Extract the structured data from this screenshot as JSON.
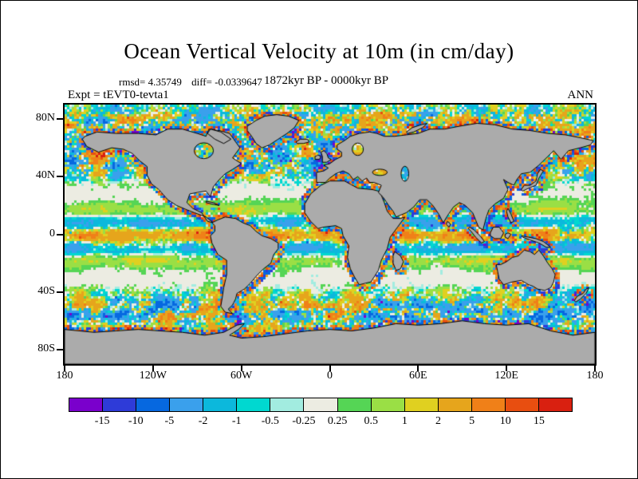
{
  "title": "Ocean Vertical Velocity at 10m (in cm/day)",
  "stats": {
    "rmsd": "rmsd= 4.35749",
    "diff": "diff= -0.0339647"
  },
  "period": "1872kyr BP - 0000kyr BP",
  "header": {
    "experiment": "Expt = tEVT0-tevta1",
    "season": "ANN"
  },
  "axes": {
    "lat_ticks": [
      {
        "label": "80N",
        "lat": 80
      },
      {
        "label": "40N",
        "lat": 40
      },
      {
        "label": "0",
        "lat": 0
      },
      {
        "label": "40S",
        "lat": -40
      },
      {
        "label": "80S",
        "lat": -80
      }
    ],
    "lon_ticks": [
      {
        "label": "180",
        "lon": -180
      },
      {
        "label": "120W",
        "lon": -120
      },
      {
        "label": "60W",
        "lon": -60
      },
      {
        "label": "0",
        "lon": 0
      },
      {
        "label": "60E",
        "lon": 60
      },
      {
        "label": "120E",
        "lon": 120
      },
      {
        "label": "180",
        "lon": 180
      }
    ]
  },
  "colorbar": {
    "levels": [
      -15,
      -10,
      -5,
      -2,
      -1,
      -0.5,
      -0.25,
      0.25,
      0.5,
      1,
      2,
      5,
      10,
      15
    ],
    "colors": [
      "#7A00CC",
      "#2E3BD8",
      "#0668E0",
      "#3AA0EC",
      "#0CB8DC",
      "#00D8D0",
      "#A2ECE0",
      "#ECECE2",
      "#55D555",
      "#9ADF45",
      "#E0D020",
      "#E6A51C",
      "#F08018",
      "#E84E10",
      "#D92010"
    ]
  },
  "map": {
    "land_color": "#ABABAB",
    "coastline_color": "#000000"
  },
  "chart_data": {
    "type": "heatmap",
    "title": "Ocean Vertical Velocity at 10m (in cm/day)",
    "units": "cm/day",
    "rmsd": 4.35749,
    "diff": -0.0339647,
    "experiment": "tEVT0-tevta1",
    "period": "1872kyr BP - 0000kyr BP",
    "season": "ANN",
    "projection": "equirectangular world map, lon -180..180, lat -90..90",
    "x_tick_labels": [
      "180",
      "120W",
      "60W",
      "0",
      "60E",
      "120E",
      "180"
    ],
    "y_tick_labels": [
      "80N",
      "40N",
      "0",
      "40S",
      "80S"
    ],
    "contour_levels": [
      -15,
      -10,
      -5,
      -2,
      -1,
      -0.5,
      -0.25,
      0.25,
      0.5,
      1,
      2,
      5,
      10,
      15
    ],
    "palette": [
      "#7A00CC",
      "#2E3BD8",
      "#0668E0",
      "#3AA0EC",
      "#0CB8DC",
      "#00D8D0",
      "#A2ECE0",
      "#ECECE2",
      "#55D555",
      "#9ADF45",
      "#E0D020",
      "#E6A51C",
      "#F08018",
      "#E84E10",
      "#D92010"
    ],
    "land_color": "#ABABAB",
    "notes": "Difference map (experiment minus control) of ocean vertical velocity at 10 m depth; gray = land, white band = values between -0.25 and 0.25 cm/day"
  }
}
